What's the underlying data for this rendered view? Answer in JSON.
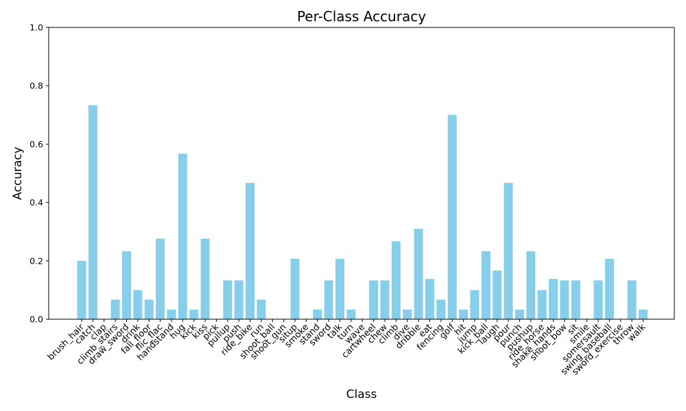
{
  "chart_data": {
    "type": "bar",
    "title": "Per-Class Accuracy",
    "xlabel": "Class",
    "ylabel": "Accuracy",
    "ylim": [
      0,
      1
    ],
    "yticks": [
      "0.0",
      "0.2",
      "0.4",
      "0.6",
      "0.8",
      "1.0"
    ],
    "bar_color": "#87ceeb",
    "categories": [
      "brush_hair",
      "catch",
      "clap",
      "climb_stairs",
      "draw_sword",
      "drink",
      "fall_floor",
      "flic_flac",
      "handstand",
      "hug",
      "kick",
      "kiss",
      "pick",
      "pullup",
      "push",
      "ride_bike",
      "run",
      "shoot_ball",
      "shoot_gun",
      "situp",
      "smoke",
      "stand",
      "sword",
      "talk",
      "turn",
      "wave",
      "cartwheel",
      "chew",
      "climb",
      "dive",
      "dribble",
      "eat",
      "fencing",
      "golf",
      "hit",
      "jump",
      "kick_ball",
      "laugh",
      "pour",
      "punch",
      "pushup",
      "ride_horse",
      "shake_hands",
      "shoot_bow",
      "sit",
      "smile",
      "somersault",
      "swing_baseball",
      "sword_exercise",
      "throw",
      "walk"
    ],
    "values": [
      0.2,
      0.733,
      0.0,
      0.067,
      0.233,
      0.1,
      0.067,
      0.276,
      0.033,
      0.567,
      0.033,
      0.276,
      0.0,
      0.133,
      0.133,
      0.467,
      0.067,
      0.0,
      0.0,
      0.207,
      0.0,
      0.033,
      0.133,
      0.207,
      0.033,
      0.0,
      0.133,
      0.133,
      0.267,
      0.033,
      0.31,
      0.138,
      0.067,
      0.7,
      0.033,
      0.1,
      0.233,
      0.167,
      0.467,
      0.033,
      0.233,
      0.1,
      0.138,
      0.133,
      0.133,
      0.0,
      0.133,
      0.207,
      0.0,
      0.133,
      0.033
    ]
  }
}
